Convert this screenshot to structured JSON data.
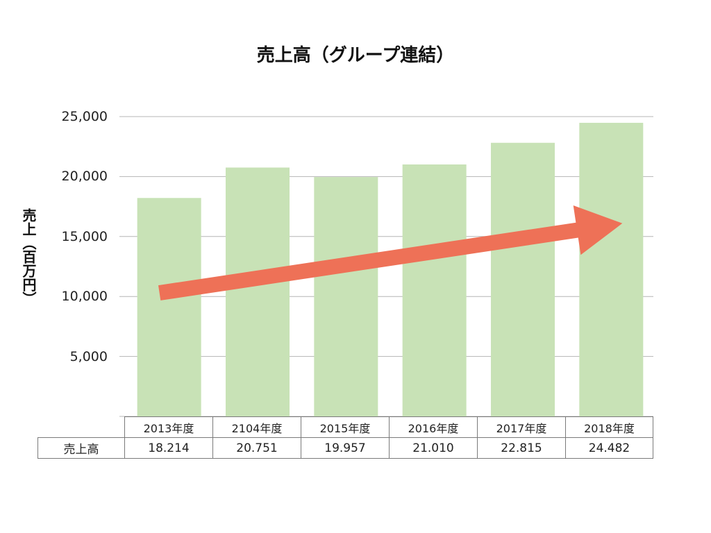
{
  "chart_data": {
    "type": "bar",
    "title": "売上高（グループ連結）",
    "ylabel": "売上（百万円）",
    "xlabel": "",
    "categories": [
      "2013年度",
      "2104年度",
      "2015年度",
      "2016年度",
      "2017年度",
      "2018年度"
    ],
    "series": [
      {
        "name": "売上高",
        "values": [
          18214,
          20751,
          19957,
          21010,
          22815,
          24482
        ]
      }
    ],
    "ylim": [
      0,
      25000
    ],
    "yticks": [
      5000,
      10000,
      15000,
      20000,
      25000
    ],
    "ytick_labels": [
      "5,000",
      "10,000",
      "15,000",
      "20,000",
      "25,000"
    ],
    "grid": true,
    "legend": "none",
    "data_table": {
      "row_label": "売上高",
      "values": [
        "18.214",
        "20.751",
        "19.957",
        "21.010",
        "22.815",
        "24.482"
      ]
    },
    "annotations": [
      {
        "type": "trend-arrow",
        "from": {
          "x": "2013年度",
          "y": 10300
        },
        "to": {
          "x": "2018年度",
          "y": 16100
        }
      }
    ],
    "colors": {
      "bar": "#c8e2b6",
      "arrow": "#ee7157",
      "grid": "#b5b5b5"
    }
  }
}
